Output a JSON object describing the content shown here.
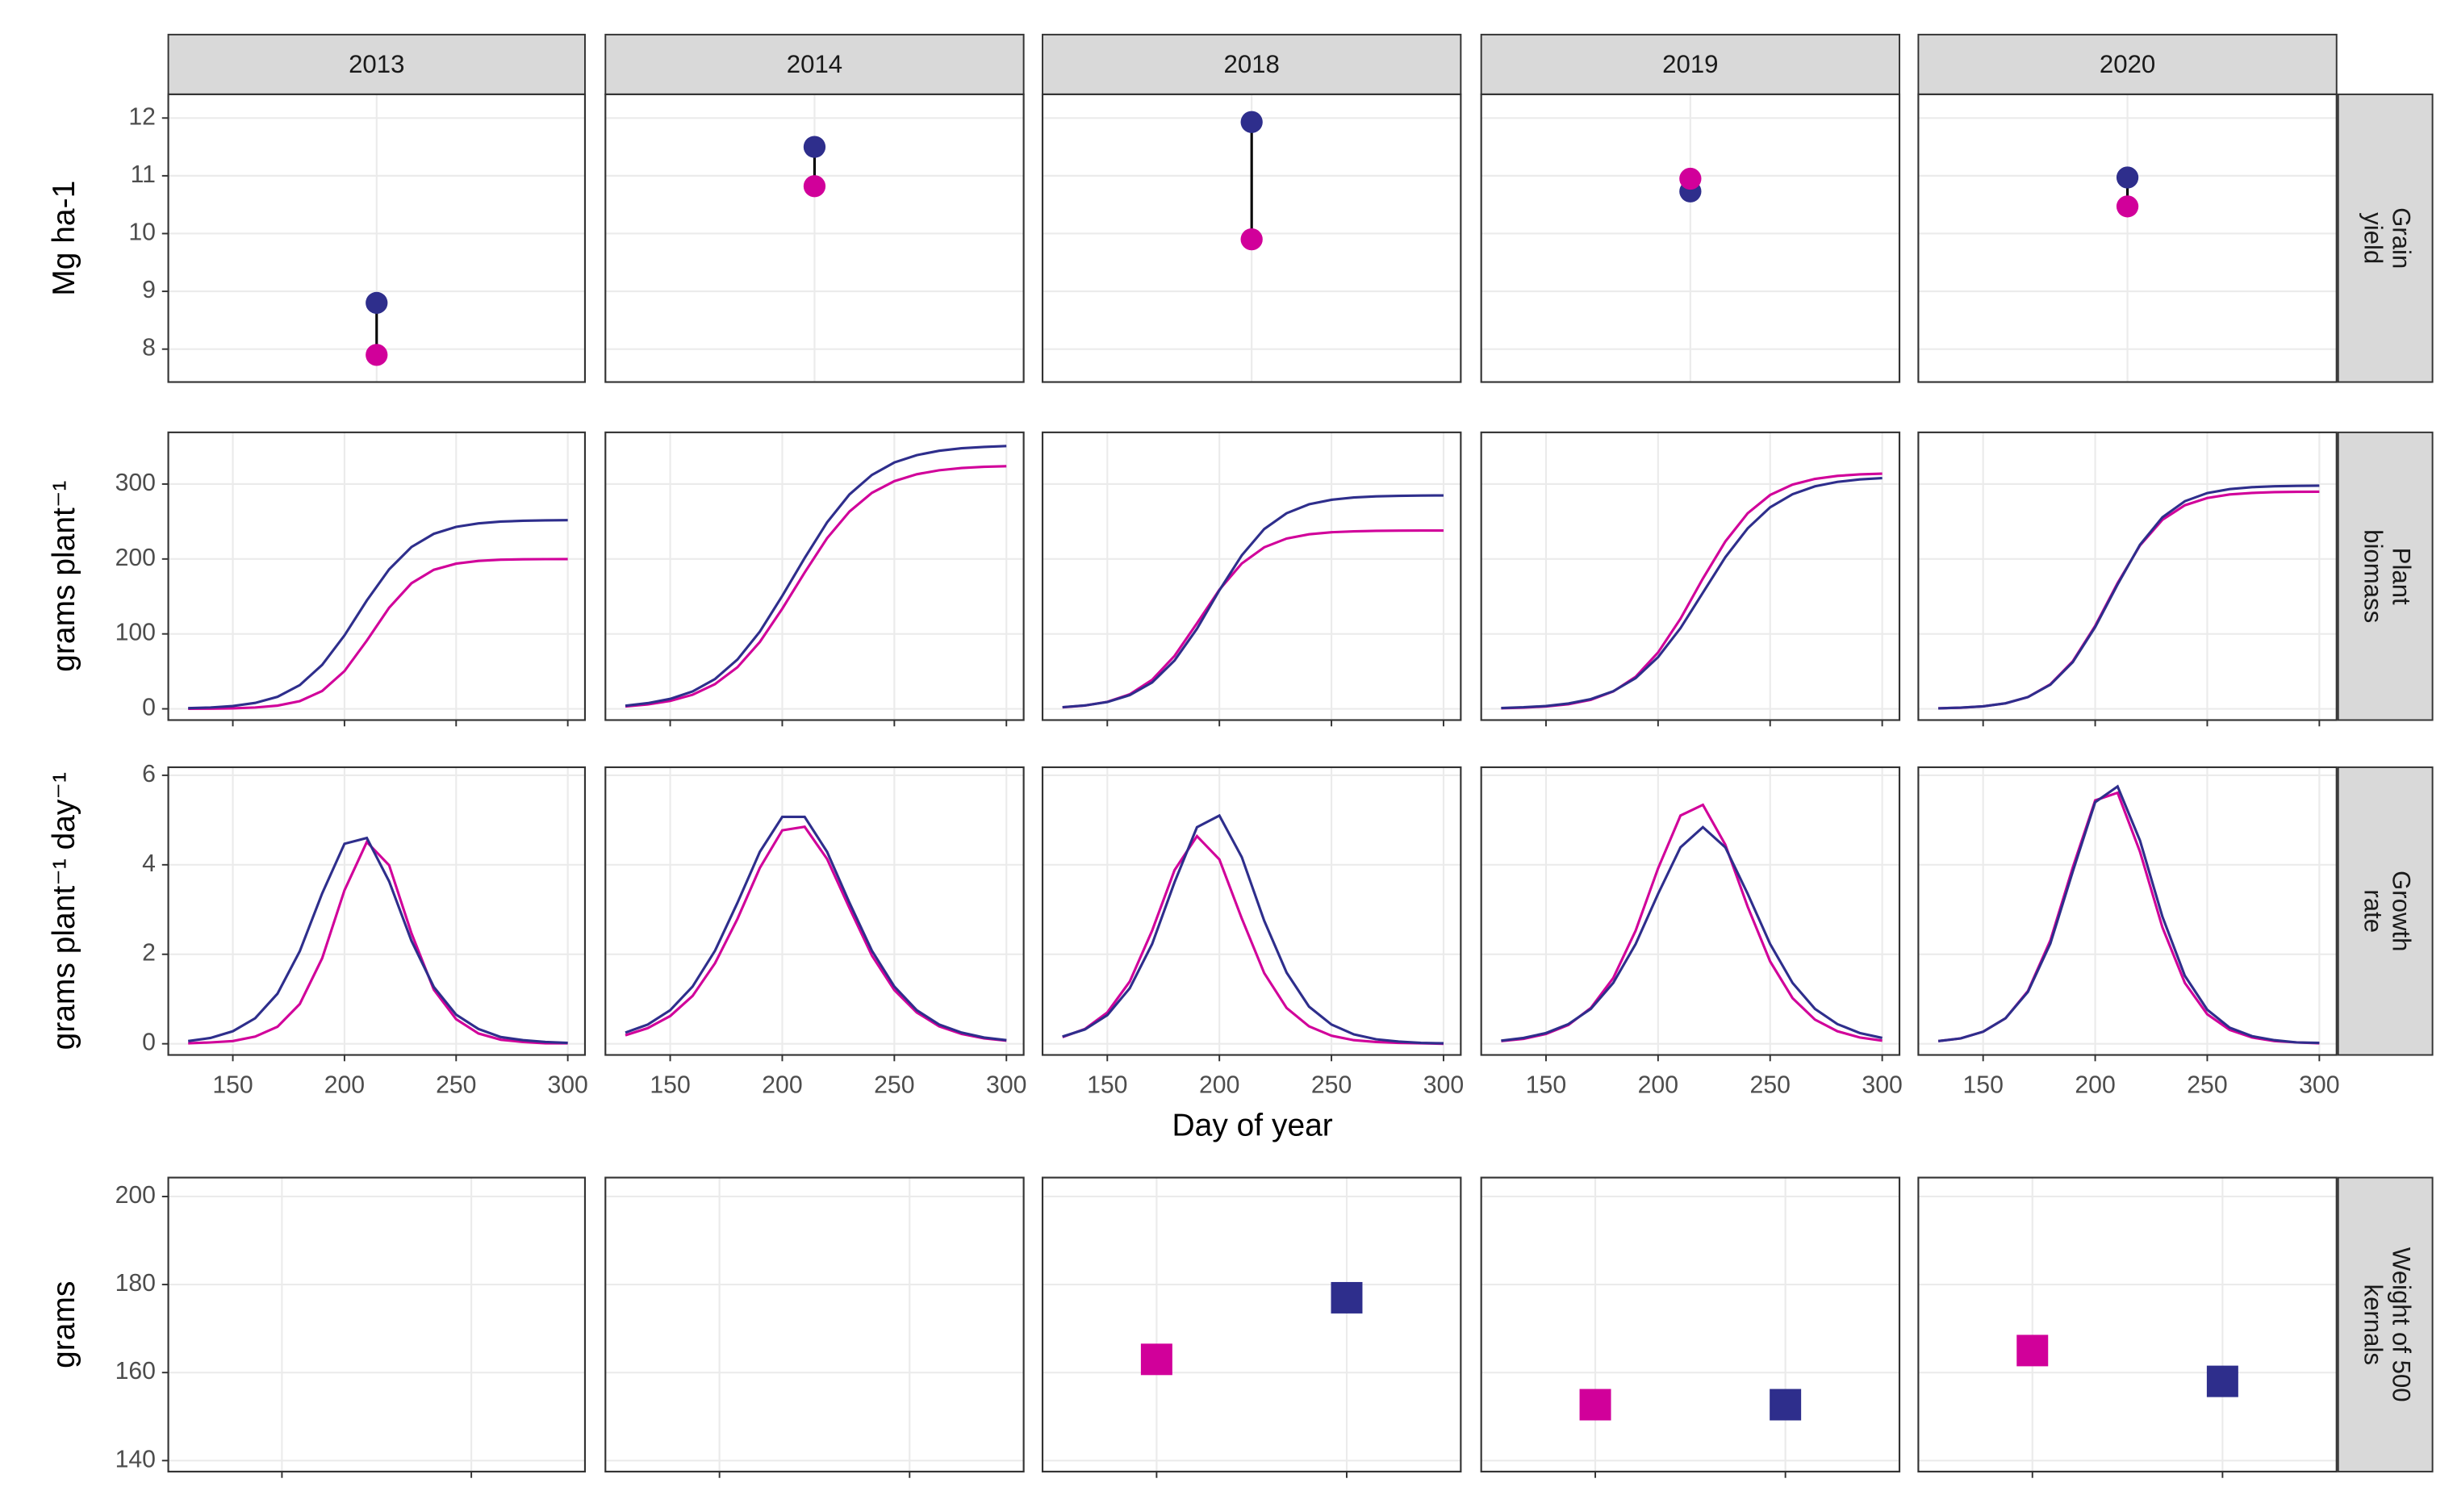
{
  "facets": [
    "2013",
    "2014",
    "2018",
    "2019",
    "2020"
  ],
  "chart_data": [
    {
      "type": "dumbbell",
      "y_label": "Mg ha-1",
      "strip": [
        "Grain",
        "yield"
      ],
      "ylim": [
        7.43,
        12.41
      ],
      "yticks": [
        8,
        9,
        10,
        11,
        12
      ],
      "grid": true,
      "categories": [
        null
      ],
      "panels": [
        {
          "series": [
            {
              "color": "#2e2e8c",
              "values": [
                8.8
              ]
            },
            {
              "color": "#d1009a",
              "values": [
                7.9
              ]
            }
          ]
        },
        {
          "series": [
            {
              "color": "#2e2e8c",
              "values": [
                11.5
              ]
            },
            {
              "color": "#d1009a",
              "values": [
                10.82
              ]
            }
          ]
        },
        {
          "series": [
            {
              "color": "#2e2e8c",
              "values": [
                11.93
              ]
            },
            {
              "color": "#d1009a",
              "values": [
                9.9
              ]
            }
          ]
        },
        {
          "series": [
            {
              "color": "#2e2e8c",
              "values": [
                10.73
              ]
            },
            {
              "color": "#d1009a",
              "values": [
                10.95
              ]
            }
          ]
        },
        {
          "series": [
            {
              "color": "#2e2e8c",
              "values": [
                10.97
              ]
            },
            {
              "color": "#d1009a",
              "values": [
                10.47
              ]
            }
          ]
        }
      ]
    },
    {
      "type": "line",
      "y_label": "grams plant⁻¹",
      "strip": [
        "Plant",
        "biomass"
      ],
      "x": [
        130,
        140,
        150,
        160,
        170,
        180,
        190,
        200,
        210,
        220,
        230,
        240,
        250,
        260,
        270,
        280,
        290,
        300
      ],
      "xlim": [
        121.1,
        307.7
      ],
      "xticks": [
        150,
        200,
        250,
        300
      ],
      "xtick_labels": false,
      "ylim": [
        -15,
        369
      ],
      "yticks": [
        0,
        100,
        200,
        300
      ],
      "grid": true,
      "panels": [
        {
          "series": [
            {
              "color": "#d1009a",
              "values": [
                0.1,
                0.3,
                0.7,
                1.8,
                4.3,
                10.3,
                23.8,
                50.4,
                91.0,
                135.0,
                167.6,
                185.6,
                193.8,
                197.4,
                199.0,
                199.6,
                199.8,
                199.9
              ]
            },
            {
              "color": "#2e2e8c",
              "values": [
                0.9,
                1.8,
                3.8,
                7.9,
                16.0,
                31.7,
                58.7,
                98.0,
                144.6,
                186.2,
                216.0,
                233.6,
                242.9,
                247.5,
                249.9,
                251.0,
                251.5,
                251.8
              ]
            }
          ]
        },
        {
          "series": [
            {
              "color": "#d1009a",
              "values": [
                3.2,
                5.9,
                10.6,
                18.8,
                33.0,
                55.5,
                89.3,
                133.6,
                182.0,
                227.8,
                263.3,
                288.3,
                303.9,
                313.1,
                318.4,
                321.4,
                323.0,
                323.9
              ]
            },
            {
              "color": "#2e2e8c",
              "values": [
                4.2,
                7.6,
                13.3,
                23.2,
                39.8,
                65.8,
                103.1,
                150.7,
                201.3,
                248.9,
                286.2,
                312.2,
                328.8,
                338.6,
                344.4,
                347.8,
                349.6,
                350.7
              ]
            }
          ]
        },
        {
          "series": [
            {
              "color": "#d1009a",
              "values": [
                2.0,
                4.4,
                9.3,
                19.4,
                38.7,
                70.7,
                114.2,
                159.0,
                194.0,
                215.6,
                227.3,
                233.0,
                235.7,
                236.9,
                237.5,
                237.8,
                237.9,
                238.0
              ]
            },
            {
              "color": "#2e2e8c",
              "values": [
                2.2,
                4.5,
                9.1,
                18.3,
                35.2,
                64.5,
                106.9,
                158.2,
                204.9,
                240.0,
                261.1,
                273.0,
                279.0,
                282.1,
                283.6,
                284.3,
                284.7,
                284.8
              ]
            }
          ]
        },
        {
          "series": [
            {
              "color": "#d1009a",
              "values": [
                0.8,
                1.6,
                3.2,
                6.2,
                12.1,
                23.2,
                42.8,
                75.2,
                120.3,
                173.9,
                223.3,
                261.1,
                285.4,
                299.3,
                306.9,
                310.9,
                312.9,
                313.9
              ]
            },
            {
              "color": "#2e2e8c",
              "values": [
                1.1,
                2.1,
                3.8,
                7.1,
                13.0,
                23.5,
                41.0,
                69.0,
                107.7,
                155.0,
                202.3,
                241.0,
                269.0,
                286.5,
                297.0,
                302.9,
                306.2,
                307.9
              ]
            }
          ]
        },
        {
          "series": [
            {
              "color": "#d1009a",
              "values": [
                0.7,
                1.5,
                3.4,
                7.3,
                15.7,
                32.8,
                63.5,
                110.8,
                167.9,
                218.1,
                252.3,
                271.7,
                281.4,
                286.1,
                288.2,
                289.2,
                289.6,
                289.8
              ]
            },
            {
              "color": "#2e2e8c",
              "values": [
                0.7,
                1.6,
                3.4,
                7.4,
                15.7,
                32.2,
                62.3,
                109.1,
                166.0,
                219.0,
                255.7,
                277.1,
                288.0,
                293.3,
                295.8,
                297.0,
                297.6,
                297.8
              ]
            }
          ]
        }
      ]
    },
    {
      "type": "line",
      "y_label": "grams plant⁻¹ day⁻¹",
      "strip": [
        "Growth",
        "rate"
      ],
      "x_label": "Day of year",
      "x": [
        130,
        140,
        150,
        160,
        170,
        180,
        190,
        200,
        210,
        220,
        230,
        240,
        250,
        260,
        270,
        280,
        290,
        300
      ],
      "xlim": [
        121.1,
        307.7
      ],
      "xticks": [
        150,
        200,
        250,
        300
      ],
      "xtick_labels": true,
      "ylim": [
        -0.25,
        6.18
      ],
      "yticks": [
        0,
        2,
        4,
        6
      ],
      "grid": true,
      "panels": [
        {
          "series": [
            {
              "color": "#d1009a",
              "values": [
                0.01,
                0.03,
                0.06,
                0.16,
                0.38,
                0.89,
                1.91,
                3.43,
                4.51,
                3.99,
                2.47,
                1.21,
                0.55,
                0.23,
                0.09,
                0.04,
                0.01,
                0.01
              ]
            },
            {
              "color": "#2e2e8c",
              "values": [
                0.06,
                0.13,
                0.28,
                0.57,
                1.12,
                2.07,
                3.36,
                4.47,
                4.6,
                3.63,
                2.3,
                1.27,
                0.65,
                0.33,
                0.15,
                0.08,
                0.04,
                0.02
              ]
            }
          ]
        },
        {
          "series": [
            {
              "color": "#d1009a",
              "values": [
                0.19,
                0.35,
                0.62,
                1.07,
                1.8,
                2.79,
                3.93,
                4.77,
                4.85,
                4.13,
                3.03,
                1.97,
                1.2,
                0.7,
                0.39,
                0.22,
                0.12,
                0.07
              ]
            },
            {
              "color": "#2e2e8c",
              "values": [
                0.25,
                0.43,
                0.75,
                1.28,
                2.08,
                3.15,
                4.29,
                5.07,
                5.07,
                4.29,
                3.15,
                2.08,
                1.28,
                0.75,
                0.43,
                0.25,
                0.14,
                0.08
              ]
            }
          ]
        },
        {
          "series": [
            {
              "color": "#d1009a",
              "values": [
                0.15,
                0.33,
                0.7,
                1.39,
                2.53,
                3.88,
                4.64,
                4.12,
                2.8,
                1.58,
                0.8,
                0.39,
                0.18,
                0.08,
                0.04,
                0.02,
                0.01,
                0.0
              ]
            },
            {
              "color": "#2e2e8c",
              "values": [
                0.16,
                0.32,
                0.64,
                1.24,
                2.23,
                3.61,
                4.84,
                5.1,
                4.17,
                2.75,
                1.59,
                0.83,
                0.43,
                0.21,
                0.1,
                0.05,
                0.02,
                0.01
              ]
            }
          ]
        },
        {
          "series": [
            {
              "color": "#d1009a",
              "values": [
                0.06,
                0.11,
                0.22,
                0.42,
                0.8,
                1.47,
                2.53,
                3.92,
                5.1,
                5.34,
                4.45,
                3.06,
                1.84,
                1.02,
                0.54,
                0.28,
                0.14,
                0.07
              ]
            },
            {
              "color": "#2e2e8c",
              "values": [
                0.07,
                0.13,
                0.24,
                0.44,
                0.78,
                1.36,
                2.23,
                3.35,
                4.39,
                4.84,
                4.39,
                3.35,
                2.23,
                1.36,
                0.78,
                0.44,
                0.24,
                0.13
              ]
            }
          ]
        },
        {
          "series": [
            {
              "color": "#d1009a",
              "values": [
                0.06,
                0.12,
                0.27,
                0.57,
                1.18,
                2.31,
                3.94,
                5.44,
                5.61,
                4.29,
                2.6,
                1.36,
                0.66,
                0.31,
                0.14,
                0.06,
                0.03,
                0.01
              ]
            },
            {
              "color": "#2e2e8c",
              "values": [
                0.06,
                0.12,
                0.27,
                0.57,
                1.16,
                2.24,
                3.85,
                5.4,
                5.75,
                4.54,
                2.84,
                1.52,
                0.76,
                0.36,
                0.17,
                0.08,
                0.03,
                0.02
              ]
            }
          ]
        }
      ]
    },
    {
      "type": "scatter",
      "y_label": "grams",
      "strip": [
        "Weight of 500",
        "kernals"
      ],
      "ylim": [
        137.5,
        204.3
      ],
      "yticks": [
        140,
        160,
        180,
        200
      ],
      "grid": true,
      "categories": [
        null,
        null
      ],
      "panels": [
        {
          "series": [
            {
              "color": "#d1009a",
              "values": [
                null,
                null
              ]
            },
            {
              "color": "#2e2e8c",
              "values": [
                null,
                null
              ]
            }
          ]
        },
        {
          "series": [
            {
              "color": "#d1009a",
              "values": [
                null,
                null
              ]
            },
            {
              "color": "#2e2e8c",
              "values": [
                null,
                null
              ]
            }
          ]
        },
        {
          "series": [
            {
              "color": "#d1009a",
              "values": [
                163,
                null
              ]
            },
            {
              "color": "#2e2e8c",
              "values": [
                null,
                177
              ]
            }
          ]
        },
        {
          "series": [
            {
              "color": "#d1009a",
              "values": [
                152.7,
                null
              ]
            },
            {
              "color": "#2e2e8c",
              "values": [
                null,
                152.7
              ]
            }
          ]
        },
        {
          "series": [
            {
              "color": "#d1009a",
              "values": [
                165,
                null
              ]
            },
            {
              "color": "#2e2e8c",
              "values": [
                null,
                158
              ]
            }
          ]
        }
      ]
    }
  ]
}
